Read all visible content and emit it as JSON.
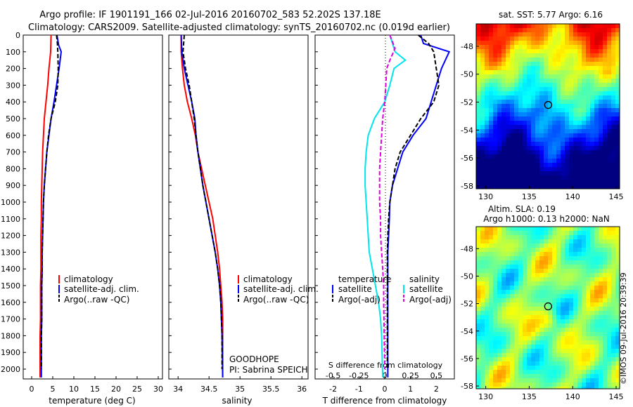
{
  "title_line1": "Argo profile: IF 1901191_166 02-Jul-2016 20160702_583 52.202S 137.18E",
  "title_line2": "Climatology: CARS2009. Satellite-adjusted climatology: synTS_20160702.nc (0.019d earlier)",
  "colors": {
    "clim": "#ff0000",
    "sat": "#0000ff",
    "argo": "#000000",
    "sat_sal": "#00e5ee",
    "argo_sal": "#e000e0"
  },
  "depth_ticks": [
    "0",
    "100",
    "200",
    "300",
    "400",
    "500",
    "600",
    "700",
    "800",
    "900",
    "1000",
    "1100",
    "1200",
    "1300",
    "1400",
    "1500",
    "1600",
    "1700",
    "1800",
    "1900",
    "2000"
  ],
  "temperature_panel": {
    "xlabel": "temperature (deg C)",
    "x_ticks": [
      "0",
      "5",
      "10",
      "15",
      "20",
      "25",
      "30"
    ],
    "legend": [
      "climatology",
      "satellite-adj. clim.",
      "Argo(..raw -QC)"
    ]
  },
  "salinity_panel": {
    "xlabel": "salinity",
    "x_ticks": [
      "34",
      "34.5",
      "35",
      "35.5",
      "36"
    ],
    "legend": [
      "climatology",
      "satellite-adj. clim.",
      "Argo(..raw -QC)"
    ],
    "project": "GOODHOPE",
    "pi": "PI: Sabrina SPEICH"
  },
  "difference_panel": {
    "xlabel": "T difference from climatology",
    "x_ticks": [
      "-2",
      "-1",
      "0",
      "1",
      "2"
    ],
    "s_label": "S difference from climatology",
    "s_ticks": [
      "-0.5",
      "-0.25",
      "0",
      "0.25",
      "0.5"
    ],
    "legend_temperature_title": "temperature",
    "legend_salinity_title": "salinity",
    "legend_items": [
      "satellite",
      "Argo(-adj)",
      "satellite",
      "Argo(-adj)"
    ]
  },
  "sst_map": {
    "title": "sat. SST: 5.77 Argo: 6.16",
    "lat_ticks": [
      "-48",
      "-50",
      "-52",
      "-54",
      "-56",
      "-58"
    ],
    "lon_ticks": [
      "130",
      "135",
      "140",
      "145"
    ]
  },
  "sla_map": {
    "title1": "Altim. SLA: 0.19",
    "title2": "Argo h1000: 0.13 h2000: NaN",
    "lat_ticks": [
      "-48",
      "-50",
      "-52",
      "-54",
      "-56",
      "-58"
    ],
    "lon_ticks": [
      "130",
      "135",
      "140",
      "145"
    ]
  },
  "credit": "©IMOS 09-Jul-2016 20:39:39",
  "chart_data": [
    {
      "type": "line",
      "title": "",
      "xlabel": "temperature (deg C)",
      "ylabel": "",
      "xlim": [
        -2,
        31
      ],
      "ylim": [
        2070,
        0
      ],
      "y_axis_reversed": true,
      "grid": false,
      "legend_position": "lower-right",
      "series": [
        {
          "name": "climatology",
          "color": "#ff0000",
          "x": [
            4.6,
            4.5,
            4.1,
            3.8,
            3.4,
            3.0,
            2.8,
            2.6,
            2.5,
            2.4,
            2.3,
            2.3,
            2.2,
            2.2,
            2.2,
            2.1,
            2.1,
            2.1,
            2.0,
            2.0,
            2.0,
            2.0
          ],
          "y": [
            0,
            100,
            200,
            300,
            400,
            500,
            600,
            700,
            800,
            900,
            1000,
            1100,
            1200,
            1300,
            1400,
            1500,
            1600,
            1700,
            1800,
            1900,
            2000,
            2050
          ]
        },
        {
          "name": "satellite-adj. clim.",
          "color": "#0000ff",
          "x": [
            6.0,
            6.4,
            7.0,
            6.5,
            5.9,
            5.3,
            4.6,
            4.1,
            3.6,
            3.3,
            3.0,
            2.8,
            2.7,
            2.6,
            2.5,
            2.5,
            2.4,
            2.4,
            2.4,
            2.3,
            2.3,
            2.3
          ],
          "y": [
            0,
            60,
            100,
            200,
            300,
            400,
            500,
            600,
            700,
            800,
            900,
            1000,
            1100,
            1200,
            1300,
            1400,
            1500,
            1600,
            1700,
            1800,
            1900,
            2050
          ]
        },
        {
          "name": "Argo(..raw -QC)",
          "color": "#000000",
          "x": [
            5.9,
            6.1,
            6.2,
            6.3,
            6.2,
            5.6,
            4.6,
            4.0,
            3.6,
            3.3,
            3.0,
            2.8,
            2.7,
            2.6,
            2.5,
            2.5,
            2.4,
            2.4,
            2.4,
            2.3,
            2.3
          ],
          "y": [
            0,
            50,
            100,
            200,
            300,
            400,
            500,
            600,
            700,
            800,
            900,
            1000,
            1100,
            1200,
            1300,
            1400,
            1500,
            1600,
            1700,
            1800,
            2000
          ]
        }
      ]
    },
    {
      "type": "line",
      "title": "",
      "xlabel": "salinity",
      "ylabel": "",
      "xlim": [
        33.85,
        36.1
      ],
      "ylim": [
        2070,
        0
      ],
      "y_axis_reversed": true,
      "grid": false,
      "legend_position": "lower-right",
      "series": [
        {
          "name": "climatology",
          "color": "#ff0000",
          "x": [
            34.05,
            34.05,
            34.07,
            34.1,
            34.15,
            34.22,
            34.28,
            34.32,
            34.38,
            34.44,
            34.5,
            34.56,
            34.6,
            34.64,
            34.67,
            34.69,
            34.71,
            34.72,
            34.72,
            34.72,
            34.72
          ],
          "y": [
            0,
            100,
            200,
            300,
            400,
            500,
            600,
            700,
            800,
            900,
            1000,
            1100,
            1200,
            1300,
            1400,
            1500,
            1600,
            1700,
            1800,
            1900,
            2050
          ]
        },
        {
          "name": "satellite-adj. clim.",
          "color": "#0000ff",
          "x": [
            34.05,
            34.06,
            34.1,
            34.16,
            34.22,
            34.27,
            34.29,
            34.32,
            34.36,
            34.4,
            34.45,
            34.5,
            34.55,
            34.6,
            34.64,
            34.67,
            34.69,
            34.7,
            34.71,
            34.72
          ],
          "y": [
            0,
            100,
            200,
            300,
            400,
            500,
            600,
            700,
            800,
            900,
            1000,
            1100,
            1200,
            1300,
            1400,
            1500,
            1600,
            1700,
            1800,
            2050
          ]
        },
        {
          "name": "Argo(..raw -QC)",
          "color": "#000000",
          "x": [
            34.1,
            34.08,
            34.12,
            34.18,
            34.22,
            34.26,
            34.29,
            34.32,
            34.36,
            34.4,
            34.45,
            34.5,
            34.55,
            34.6,
            34.64,
            34.67,
            34.69,
            34.7,
            34.71,
            34.71
          ],
          "y": [
            0,
            100,
            200,
            300,
            400,
            500,
            600,
            700,
            800,
            900,
            1000,
            1100,
            1200,
            1300,
            1400,
            1500,
            1600,
            1700,
            1800,
            2000
          ]
        }
      ]
    },
    {
      "type": "line",
      "title": "",
      "xlabel": "T difference from climatology",
      "ylabel": "",
      "xlim": [
        -2.7,
        2.7
      ],
      "ylim": [
        2070,
        0
      ],
      "y_axis_reversed": true,
      "secondary_xlabel": "S difference from climatology",
      "secondary_xlim": [
        -0.675,
        0.675
      ],
      "grid": false,
      "legend_position": "lower-center",
      "series": [
        {
          "name": "temperature satellite",
          "color": "#0000ff",
          "x": [
            1.4,
            1.5,
            2.5,
            2.2,
            2.0,
            1.8,
            1.6,
            1.1,
            0.7,
            0.5,
            0.3,
            0.2,
            0.18,
            0.15,
            0.12,
            0.12,
            0.12,
            0.12,
            0.12,
            0.12,
            0.12
          ],
          "y": [
            0,
            50,
            100,
            200,
            300,
            400,
            500,
            600,
            700,
            800,
            900,
            1000,
            1100,
            1200,
            1300,
            1400,
            1500,
            1600,
            1700,
            1800,
            2050
          ]
        },
        {
          "name": "temperature Argo(-adj)",
          "color": "#000000",
          "x": [
            1.3,
            1.7,
            1.9,
            2.0,
            2.1,
            1.9,
            1.4,
            1.0,
            0.6,
            0.4,
            0.3,
            0.2,
            0.15,
            0.12,
            0.1,
            0.1,
            0.1,
            0.1,
            0.1,
            0.1
          ],
          "y": [
            0,
            50,
            100,
            200,
            300,
            400,
            500,
            600,
            700,
            800,
            900,
            1000,
            1100,
            1200,
            1300,
            1400,
            1500,
            1600,
            1700,
            2000
          ]
        },
        {
          "name": "salinity satellite",
          "color": "#00e5ee",
          "x": [
            0.05,
            0.1,
            0.2,
            0.09,
            0.05,
            0.0,
            -0.1,
            -0.16,
            -0.18,
            -0.19,
            -0.19,
            -0.18,
            -0.17,
            -0.16,
            -0.15,
            -0.12,
            -0.09,
            -0.06,
            -0.04,
            -0.03,
            -0.02
          ],
          "y": [
            0,
            100,
            150,
            200,
            300,
            400,
            500,
            600,
            700,
            800,
            900,
            1000,
            1100,
            1200,
            1300,
            1400,
            1500,
            1600,
            1700,
            1800,
            2050
          ]
        },
        {
          "name": "salinity Argo(-adj)",
          "color": "#e000e0",
          "x": [
            0.05,
            0.1,
            0.05,
            0.02,
            0.01,
            0.0,
            -0.02,
            -0.03,
            -0.04,
            -0.05,
            -0.05,
            -0.05,
            -0.04,
            -0.04,
            -0.03,
            -0.02,
            -0.01,
            -0.01,
            0.0
          ],
          "y": [
            0,
            80,
            150,
            200,
            300,
            400,
            500,
            600,
            700,
            800,
            900,
            1000,
            1100,
            1200,
            1300,
            1400,
            1500,
            1600,
            2000
          ]
        }
      ]
    },
    {
      "type": "heatmap",
      "title": "sat. SST: 5.77 Argo: 6.16",
      "xlabel": "",
      "ylabel": "",
      "xlim": [
        128.9,
        145.4
      ],
      "ylim": [
        -58.2,
        -46.4
      ],
      "argo_position": {
        "lon": 137.18,
        "lat": -52.202
      }
    },
    {
      "type": "heatmap",
      "title": "Altim. SLA: 0.19",
      "xlabel": "",
      "ylabel": "",
      "xlim": [
        128.9,
        145.4
      ],
      "ylim": [
        -58.2,
        -46.4
      ],
      "argo_position": {
        "lon": 137.18,
        "lat": -52.202
      }
    }
  ]
}
